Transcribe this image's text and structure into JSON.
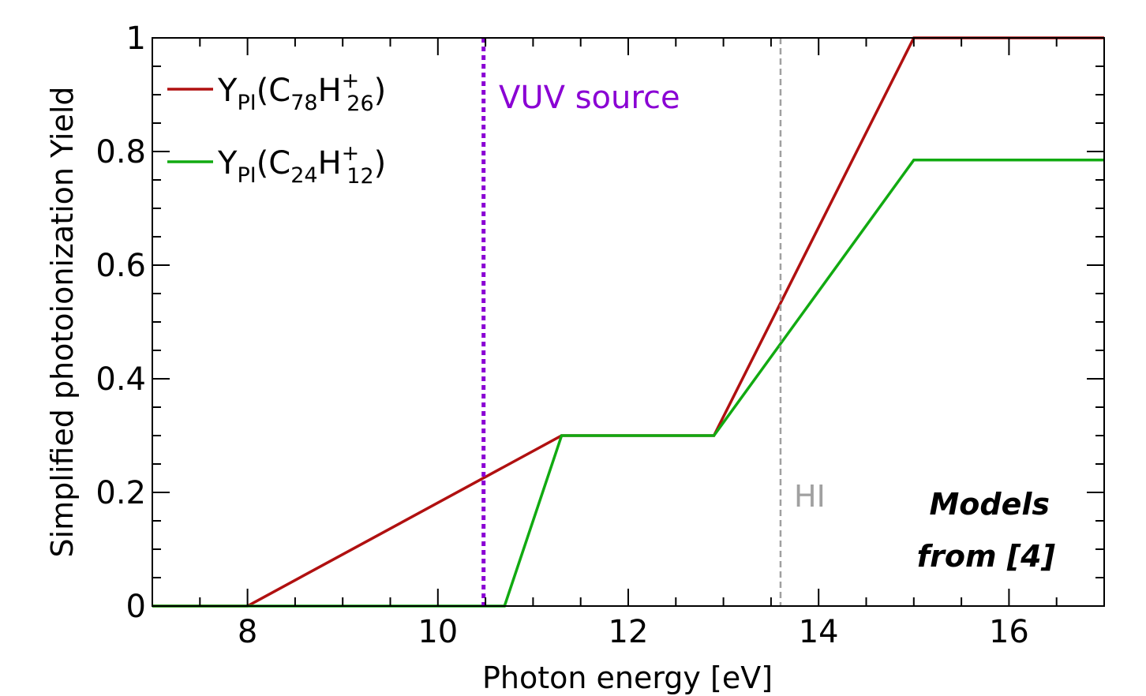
{
  "chart_data": {
    "type": "line",
    "xlabel": "Photon energy [eV]",
    "ylabel": "Simplified photoionization Yield",
    "xlim": [
      7,
      17
    ],
    "ylim": [
      0,
      1
    ],
    "xticks": [
      8,
      10,
      12,
      14,
      16
    ],
    "yticks": [
      0,
      0.2,
      0.4,
      0.6,
      0.8,
      1
    ],
    "ytick_labels": [
      "0",
      "0.2",
      "0.4",
      "0.6",
      "0.8",
      "1"
    ],
    "grid": false,
    "legend_placement": "top-left",
    "series": [
      {
        "name_base": "Y",
        "name_sub": "PI",
        "formula": {
          "a": "C",
          "a_sub": "78",
          "b": "H",
          "b_sub": "26",
          "b_sup": "+"
        },
        "color": "#b01010",
        "x": [
          7,
          8,
          11.3,
          12.9,
          15,
          17
        ],
        "y": [
          0,
          0,
          0.3,
          0.3,
          1,
          1
        ]
      },
      {
        "name_base": "Y",
        "name_sub": "PI",
        "formula": {
          "a": "C",
          "a_sub": "24",
          "b": "H",
          "b_sub": "12",
          "b_sup": "+"
        },
        "color": "#11aa11",
        "x": [
          7,
          10.7,
          11.3,
          12.9,
          15,
          17
        ],
        "y": [
          0,
          0,
          0.3,
          0.3,
          0.785,
          0.785
        ]
      }
    ],
    "vlines": [
      {
        "x": 10.48,
        "label": "VUV source",
        "color": "#8a00d4",
        "style": "dotted"
      },
      {
        "x": 13.6,
        "label": "HI",
        "color": "#a0a0a0",
        "style": "dashed"
      }
    ],
    "annotation": {
      "line1": "Models",
      "line2": "from [4]"
    }
  }
}
